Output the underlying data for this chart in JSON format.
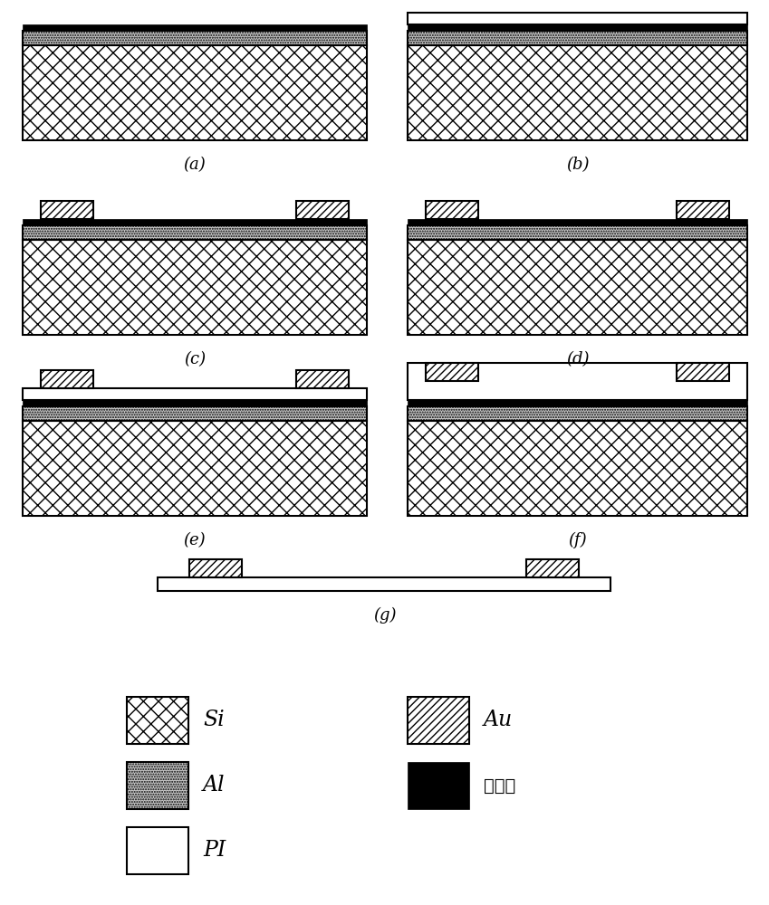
{
  "legend_labels": [
    "Si",
    "Au",
    "Al",
    "石墨烯",
    "PI"
  ],
  "panels": [
    "(a)",
    "(b)",
    "(c)",
    "(d)",
    "(e)",
    "(f)",
    "(g)"
  ]
}
